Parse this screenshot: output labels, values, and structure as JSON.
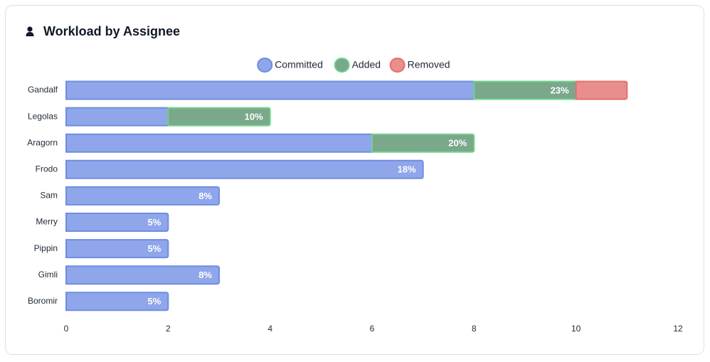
{
  "chart_data": {
    "type": "stacked-bar-horizontal",
    "title": "Workload by Assignee",
    "categories": [
      "Gandalf",
      "Legolas",
      "Aragorn",
      "Frodo",
      "Sam",
      "Merry",
      "Pippin",
      "Gimli",
      "Boromir"
    ],
    "series": [
      {
        "name": "Committed",
        "color": "#8fa6ea",
        "stroke": "#6f8de2",
        "values": [
          8,
          2,
          6,
          7,
          3,
          2,
          2,
          3,
          2
        ]
      },
      {
        "name": "Added",
        "color": "#7ba78b",
        "stroke": "#6fd48c",
        "values": [
          2,
          2,
          2,
          0,
          0,
          0,
          0,
          0,
          0
        ]
      },
      {
        "name": "Removed",
        "color": "#e98f8b",
        "stroke": "#e46f6f",
        "values": [
          1,
          0,
          0,
          0,
          0,
          0,
          0,
          0,
          0
        ]
      }
    ],
    "percent_labels": {
      "values": [
        23,
        10,
        20,
        18,
        8,
        5,
        5,
        8,
        5
      ],
      "value_labels": [
        "23%",
        "10%",
        "20%",
        "18%",
        "8%",
        "5%",
        "5%",
        "8%",
        "5%"
      ]
    },
    "xlim": [
      0,
      12
    ],
    "xticks": [
      0,
      2,
      4,
      6,
      8,
      10,
      12
    ],
    "legend": "top"
  }
}
